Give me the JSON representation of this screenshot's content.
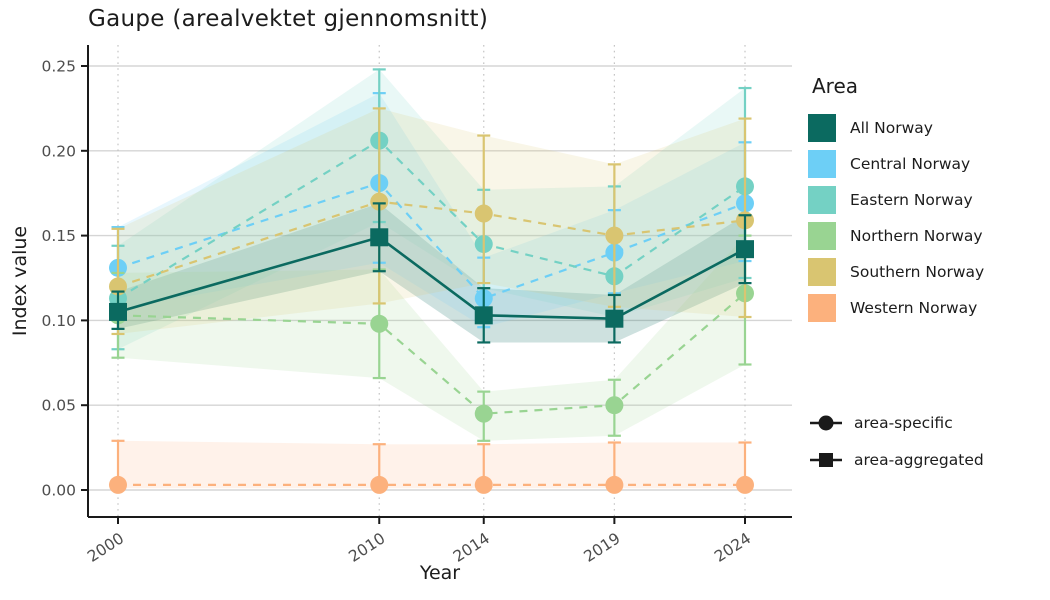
{
  "title": "Gaupe (arealvektet gjennomsnitt)",
  "colors": {
    "background": "#ffffff",
    "grid_major": "#d5d5d5",
    "grid_dotted": "#c4c4c4",
    "axis": "#1a1a1a",
    "tick_label": "#4d4d4d",
    "text": "#1c1c1c"
  },
  "chart_data": {
    "type": "line",
    "title": "Gaupe (arealvektet gjennomsnitt)",
    "xlabel": "Year",
    "ylabel": "Index value",
    "x": [
      2000,
      2010,
      2014,
      2019,
      2024
    ],
    "xlim": [
      2000,
      2024
    ],
    "ylim": [
      0.0,
      0.25
    ],
    "yticks": [
      0.0,
      0.05,
      0.1,
      0.15,
      0.2,
      0.25
    ],
    "grid": "horizontal-solid, vertical-dotted",
    "legend": {
      "color_title": "Area",
      "position": "right",
      "shape_items": [
        {
          "label": "area-specific",
          "shape": "circle"
        },
        {
          "label": "area-aggregated",
          "shape": "square"
        }
      ]
    },
    "series": [
      {
        "name": "All Norway",
        "color": "#0b6a60",
        "shape": "square",
        "linestyle": "solid",
        "kind": "area-aggregated",
        "values": [
          0.105,
          0.149,
          0.103,
          0.101,
          0.142
        ],
        "lo": [
          0.095,
          0.129,
          0.087,
          0.087,
          0.122
        ],
        "hi": [
          0.117,
          0.169,
          0.119,
          0.115,
          0.162
        ]
      },
      {
        "name": "Central Norway",
        "color": "#6dcff6",
        "shape": "circle",
        "linestyle": "dashed",
        "kind": "area-specific",
        "values": [
          0.131,
          0.181,
          0.113,
          0.14,
          0.169
        ],
        "lo": [
          0.107,
          0.134,
          0.096,
          0.116,
          0.135
        ],
        "hi": [
          0.155,
          0.234,
          0.137,
          0.165,
          0.205
        ]
      },
      {
        "name": "Eastern Norway",
        "color": "#74d1c4",
        "shape": "circle",
        "linestyle": "dashed",
        "kind": "area-specific",
        "values": [
          0.113,
          0.206,
          0.145,
          0.126,
          0.179
        ],
        "lo": [
          0.083,
          0.158,
          0.119,
          0.102,
          0.125
        ],
        "hi": [
          0.144,
          0.248,
          0.177,
          0.179,
          0.237
        ]
      },
      {
        "name": "Northern Norway",
        "color": "#99d492",
        "shape": "circle",
        "linestyle": "dashed",
        "kind": "area-specific",
        "values": [
          0.103,
          0.098,
          0.045,
          0.05,
          0.116
        ],
        "lo": [
          0.078,
          0.066,
          0.029,
          0.032,
          0.074
        ],
        "hi": [
          0.128,
          0.13,
          0.058,
          0.065,
          0.15
        ]
      },
      {
        "name": "Southern Norway",
        "color": "#d9c571",
        "shape": "circle",
        "linestyle": "dashed",
        "kind": "area-specific",
        "values": [
          0.12,
          0.17,
          0.163,
          0.15,
          0.159
        ],
        "lo": [
          0.092,
          0.11,
          0.122,
          0.108,
          0.102
        ],
        "hi": [
          0.154,
          0.225,
          0.209,
          0.192,
          0.219
        ]
      },
      {
        "name": "Western Norway",
        "color": "#fcb17d",
        "shape": "circle",
        "linestyle": "dashed",
        "kind": "area-specific",
        "values": [
          0.003,
          0.003,
          0.003,
          0.003,
          0.003
        ],
        "lo": [
          0.001,
          0.001,
          0.001,
          0.001,
          0.001
        ],
        "hi": [
          0.029,
          0.027,
          0.027,
          0.028,
          0.028
        ]
      }
    ]
  }
}
